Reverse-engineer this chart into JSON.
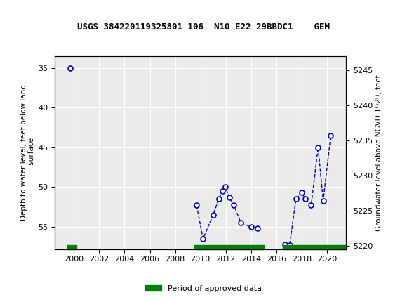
{
  "title": "USGS 384220119325801 106  N10 E22 29BBDC1    GEM",
  "ylabel_left": "Depth to water level, feet below land\n surface",
  "ylabel_right": "Groundwater level above NGVD 1929, feet",
  "xlim": [
    1998.5,
    2021.5
  ],
  "ylim_left": [
    57.8,
    33.5
  ],
  "ylim_right": [
    5219.5,
    5247.0
  ],
  "xticks": [
    2000,
    2002,
    2004,
    2006,
    2008,
    2010,
    2012,
    2014,
    2016,
    2018,
    2020
  ],
  "yticks_left": [
    35,
    40,
    45,
    50,
    55
  ],
  "yticks_right": [
    5220,
    5225,
    5230,
    5235,
    5240,
    5245
  ],
  "segments": [
    {
      "x": [
        1999.7
      ],
      "y": [
        35.0
      ]
    },
    {
      "x": [
        2009.7,
        2010.2,
        2011.0,
        2011.45,
        2011.75,
        2011.95,
        2012.3,
        2012.65,
        2013.2,
        2014.0,
        2014.5
      ],
      "y": [
        52.3,
        56.5,
        53.5,
        51.5,
        50.5,
        50.0,
        51.3,
        52.3,
        54.5,
        55.0,
        55.2
      ]
    },
    {
      "x": [
        2016.7,
        2017.05,
        2017.55,
        2018.0,
        2018.3,
        2018.75,
        2019.3,
        2019.7,
        2020.3
      ],
      "y": [
        57.2,
        57.3,
        51.5,
        50.7,
        51.5,
        52.3,
        45.0,
        51.7,
        43.5
      ]
    }
  ],
  "approved_segments": [
    {
      "x_start": 1999.5,
      "x_end": 2000.2
    },
    {
      "x_start": 2009.5,
      "x_end": 2015.0
    },
    {
      "x_start": 2016.5,
      "x_end": 2021.5
    }
  ],
  "line_color": "#0000cc",
  "marker_face": "#ffffff",
  "marker_edge": "#0000cc",
  "approved_color": "#008000",
  "header_color": "#1e6b3c",
  "bg_color": "#ffffff",
  "plot_bg": "#ebebeb"
}
